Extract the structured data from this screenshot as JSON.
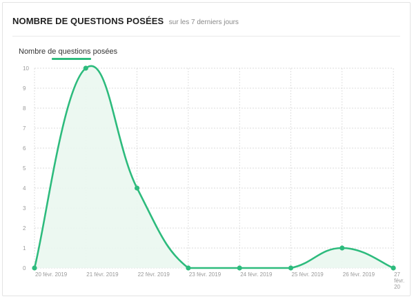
{
  "header": {
    "title": "NOMBRE DE QUESTIONS POSÉES",
    "subtitle": "sur les 7 derniers jours"
  },
  "colors": {
    "accent": "#2dbb7d",
    "fill": "#eaf7ef",
    "grid": "#d0d0d0"
  },
  "chart_data": {
    "type": "area",
    "title": "NOMBRE DE QUESTIONS POSÉES",
    "subtitle": "sur les 7 derniers jours",
    "legend": "top-left",
    "grid": true,
    "ylim": [
      0,
      10
    ],
    "yticks": [
      "0",
      "1",
      "2",
      "3",
      "4",
      "5",
      "6",
      "7",
      "8",
      "9",
      "10"
    ],
    "categories": [
      "20 févr. 2019",
      "21 févr. 2019",
      "22 févr. 2019",
      "23 févr. 2019",
      "24 févr. 2019",
      "25 févr. 2019",
      "26 févr. 2019",
      "27 févr. 20"
    ],
    "series": [
      {
        "name": "Nombre de questions posées",
        "values": [
          0,
          10,
          4,
          0,
          0,
          0,
          1,
          0
        ]
      }
    ]
  }
}
